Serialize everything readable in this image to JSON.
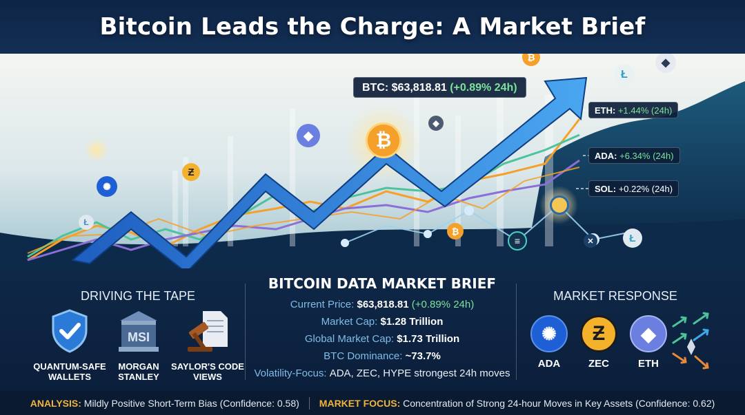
{
  "title": "Bitcoin Leads the Charge: A Market Brief",
  "callouts": {
    "btc": {
      "label": "BTC: $63,818.81",
      "change": "(+0.89% 24h)"
    },
    "eth": {
      "label": "ETH:",
      "change": "+1.44% (24h)"
    },
    "ada": {
      "label": "ADA:",
      "change": "+6.34% (24h)"
    },
    "sol": {
      "label": "SOL:",
      "change": "+0.22% (24h)"
    }
  },
  "tape": {
    "title": "DRIVING THE TAPE",
    "items": [
      {
        "label": "QUANTUM-SAFE WALLETS",
        "icon": "shield-check-icon"
      },
      {
        "label": "MORGAN STANLEY",
        "icon": "bank-msi-icon",
        "logo_text": "MSI"
      },
      {
        "label": "SAYLOR'S CODE VIEWS",
        "icon": "gavel-document-icon"
      }
    ]
  },
  "brief": {
    "title": "BITCOIN DATA MARKET BRIEF",
    "rows": [
      {
        "key": "Current Price:",
        "value": "$63,818.81",
        "extra": "(+0.89% 24h)"
      },
      {
        "key": "Market Cap:",
        "value": "$1.28 Trillion"
      },
      {
        "key": "Global Market Cap:",
        "value": "$1.73 Trillion"
      },
      {
        "key": "BTC Dominance:",
        "value": "~73.7%"
      },
      {
        "key": "Volatility-Focus:",
        "value": "ADA, ZEC, HYPE strongest 24h moves"
      }
    ]
  },
  "response": {
    "title": "MARKET RESPONSE",
    "items": [
      {
        "label": "ADA",
        "icon": "cardano-icon",
        "color": "#1f5fd6"
      },
      {
        "label": "ZEC",
        "icon": "zcash-icon",
        "color": "#f3b12c"
      },
      {
        "label": "ETH",
        "icon": "ethereum-icon",
        "color": "#6b7fe0"
      }
    ]
  },
  "footer": {
    "analysis_key": "ANALYSIS:",
    "analysis_text": "Mildly Positive Short-Term Bias (Confidence: 0.58)",
    "focus_key": "MARKET FOCUS:",
    "focus_text": "Concentration of Strong 24-hour Moves in Key Assets (Confidence: 0.62)"
  },
  "colors": {
    "btc_orange": "#f4a02a",
    "arrow_blue": "#2f7fd8",
    "positive_green": "#7de29c",
    "accent_gold": "#f2b43c",
    "navy": "#0b1e3a"
  }
}
